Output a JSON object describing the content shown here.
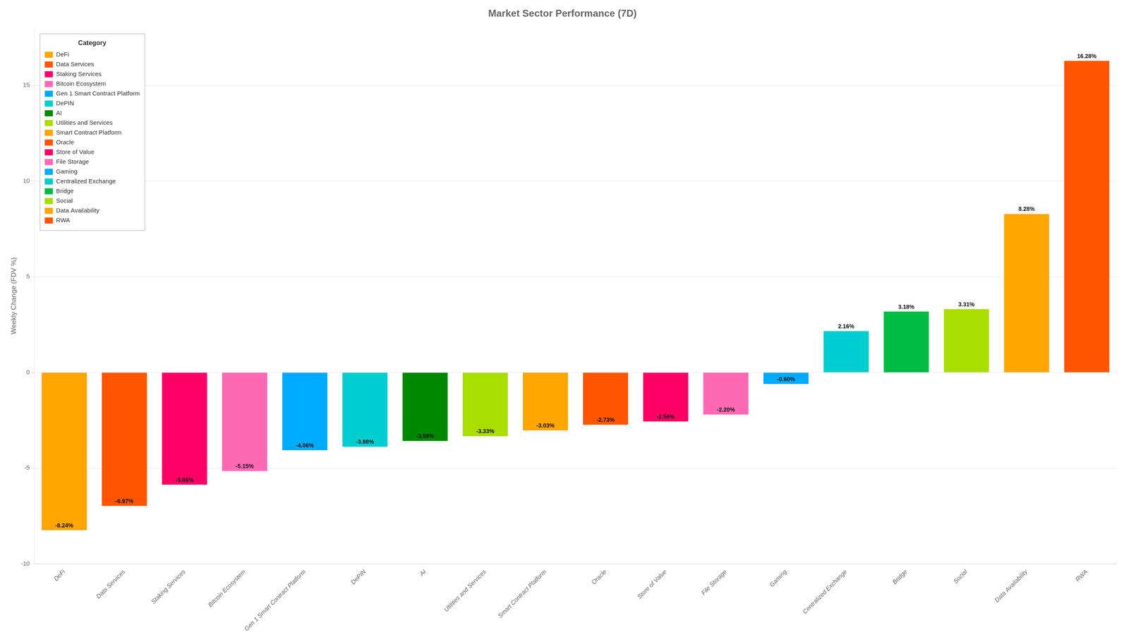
{
  "chart_data": {
    "type": "bar",
    "title": "Market Sector Performance (7D)",
    "ylabel": "Weekly Change (FDV %)",
    "categories": [
      "DeFi",
      "Data Services",
      "Staking Services",
      "Bitcoin Ecosystem",
      "Gen 1 Smart Contract Platform",
      "DePIN",
      "AI",
      "Utilities and Services",
      "Smart Contract Platform",
      "Oracle",
      "Store of Value",
      "File Storage",
      "Gaming",
      "Centralized Exchange",
      "Bridge",
      "Social",
      "Data Availability",
      "RWA"
    ],
    "values": [
      -8.24,
      -6.97,
      -5.86,
      -5.15,
      -4.06,
      -3.88,
      -3.58,
      -3.33,
      -3.03,
      -2.73,
      -2.56,
      -2.2,
      -0.6,
      2.16,
      3.18,
      3.31,
      8.28,
      16.28
    ],
    "value_labels": [
      "-8.24%",
      "-6.97%",
      "-5.86%",
      "-5.15%",
      "-4.06%",
      "-3.88%",
      "-3.58%",
      "-3.33%",
      "-3.03%",
      "-2.73%",
      "-2.56%",
      "-2.20%",
      "-0.60%",
      "2.16%",
      "3.18%",
      "3.31%",
      "8.28%",
      "16.28%"
    ],
    "colors": [
      "#FFA500",
      "#FF5500",
      "#FF0066",
      "#FF69B4",
      "#00AAFF",
      "#00CED1",
      "#008800",
      "#AADD00",
      "#FFA500",
      "#FF5500",
      "#FF0066",
      "#FF69B4",
      "#00AAFF",
      "#00CED1",
      "#00BB44",
      "#AADD00",
      "#FFA500",
      "#FF5500"
    ],
    "ylim": [
      -10,
      18
    ],
    "yticks": [
      -10,
      -5,
      0,
      5,
      10,
      15
    ],
    "grid": true,
    "data_labels": true,
    "legend": "upper left",
    "legend_title": "Category"
  }
}
